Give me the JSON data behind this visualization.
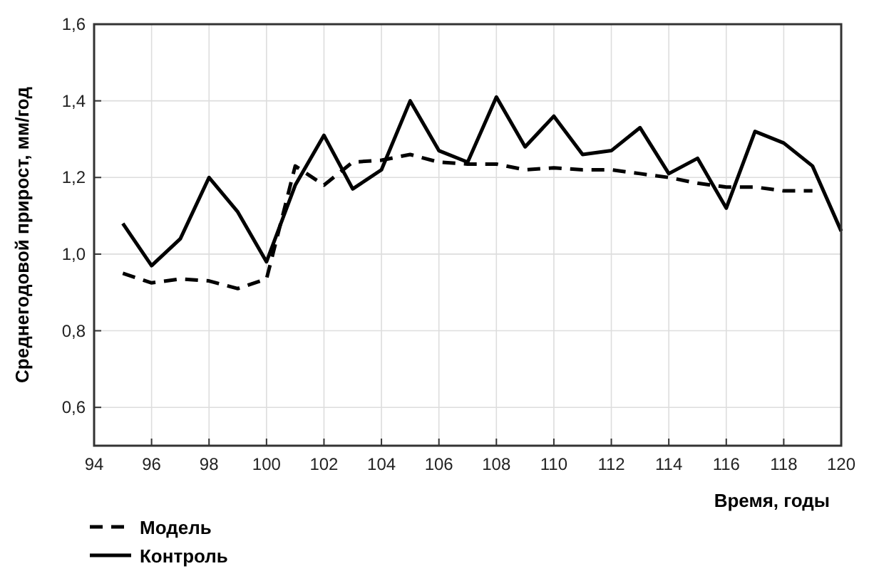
{
  "chart_data": {
    "type": "line",
    "xlabel": "Время, годы",
    "ylabel": "Среднегодовой прирост, мм/год",
    "x": [
      95,
      96,
      97,
      98,
      99,
      100,
      101,
      102,
      103,
      104,
      105,
      106,
      107,
      108,
      109,
      110,
      111,
      112,
      113,
      114,
      115,
      116,
      117,
      118,
      119,
      120
    ],
    "series": [
      {
        "name": "Модель",
        "color": "#000000",
        "line_style": "dashed",
        "values": [
          0.95,
          0.925,
          0.935,
          0.93,
          0.91,
          0.935,
          1.23,
          1.18,
          1.24,
          1.245,
          1.26,
          1.24,
          1.235,
          1.235,
          1.22,
          1.225,
          1.22,
          1.22,
          1.21,
          1.2,
          1.185,
          1.175,
          1.175,
          1.165,
          1.165,
          null
        ]
      },
      {
        "name": "Контроль",
        "color": "#000000",
        "line_style": "solid",
        "values": [
          1.08,
          0.97,
          1.04,
          1.2,
          1.11,
          0.98,
          1.18,
          1.31,
          1.17,
          1.22,
          1.4,
          1.27,
          1.24,
          1.41,
          1.28,
          1.36,
          1.26,
          1.27,
          1.33,
          1.21,
          1.25,
          1.12,
          1.32,
          1.29,
          1.23,
          1.06
        ]
      }
    ],
    "xlim": [
      94,
      120
    ],
    "xticks": [
      94,
      96,
      98,
      100,
      102,
      104,
      106,
      108,
      110,
      112,
      114,
      116,
      118,
      120
    ],
    "ylim": [
      0.5,
      1.6
    ],
    "yticks": [
      {
        "value": 0.6,
        "label": "0,6"
      },
      {
        "value": 0.8,
        "label": "0,8"
      },
      {
        "value": 1.0,
        "label": "1,0"
      },
      {
        "value": 1.2,
        "label": "1,2"
      },
      {
        "value": 1.4,
        "label": "1,4"
      },
      {
        "value": 1.6,
        "label": "1,6"
      }
    ],
    "grid": true,
    "legend": "bottom left"
  }
}
